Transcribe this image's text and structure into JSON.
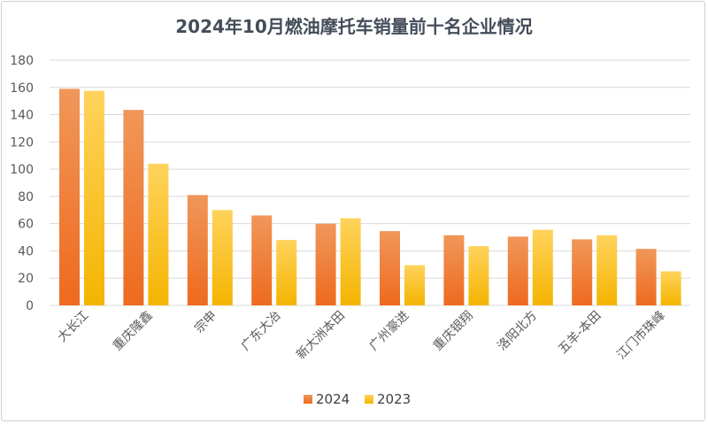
{
  "chart_data": {
    "type": "bar",
    "title": "2024年10月燃油摩托车销量前十名企业情况",
    "xlabel": "",
    "ylabel": "",
    "categories": [
      "大长江",
      "重庆隆鑫",
      "宗申",
      "广东大冶",
      "新大洲本田",
      "广州豪进",
      "重庆银翔",
      "洛阳北方",
      "五羊-本田",
      "江门市珠峰"
    ],
    "series": [
      {
        "name": "2024",
        "values": [
          159,
          143.5,
          81,
          66,
          60,
          54.5,
          51.5,
          50.5,
          48.5,
          41.5
        ]
      },
      {
        "name": "2023",
        "values": [
          157.5,
          104,
          70,
          48,
          64,
          29.5,
          43.5,
          55.5,
          51.5,
          25
        ]
      }
    ],
    "ylim": [
      0,
      180
    ],
    "yticks": [
      0,
      20,
      40,
      60,
      80,
      100,
      120,
      140,
      160,
      180
    ],
    "grid": true,
    "legend_position": "bottom",
    "colors": {
      "2024": [
        "#f0975a",
        "#ee6a1e"
      ],
      "2023": [
        "#ffd35c",
        "#f4b400"
      ]
    }
  }
}
